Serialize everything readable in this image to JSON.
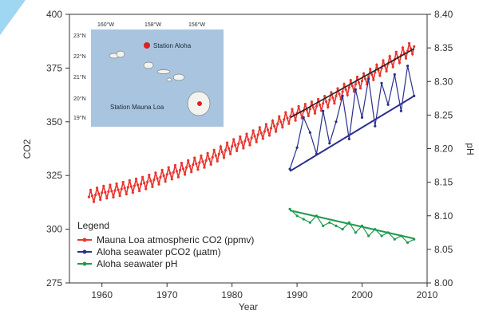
{
  "colors": {
    "atmospheric": "#e8352f",
    "seawater_pco2": "#2b2f8c",
    "seawater_ph": "#1f9a4e",
    "trend": "#222222",
    "map_sea": "#a9c4de",
    "map_land": "#f2f2ee",
    "station": "#e02020",
    "deco": "#9fd6f2"
  },
  "chart_data": {
    "type": "line",
    "xlabel": "Year",
    "ylabel": "CO2",
    "ylabel_right": "pH",
    "xlim": [
      1955,
      2010
    ],
    "ylim": [
      275,
      400
    ],
    "ylim_right": [
      8.0,
      8.4
    ],
    "x_ticks": [
      "1960",
      "1970",
      "1980",
      "1990",
      "2000",
      "2010"
    ],
    "y_ticks": [
      "275",
      "300",
      "325",
      "350",
      "375",
      "400"
    ],
    "y_ticks_right": [
      "8.00",
      "8.05",
      "8.10",
      "8.15",
      "8.20",
      "8.25",
      "8.30",
      "8.35",
      "8.40"
    ],
    "legend": {
      "title": "Legend",
      "entries": [
        "Mauna Loa atmospheric CO2 (ppmv)",
        "Aloha seawater pCO2 (µatm)",
        "Aloha seawater pH"
      ]
    },
    "series": [
      {
        "name": "Mauna Loa atmospheric CO2 (ppmv)",
        "axis": "left",
        "x": [
          1958,
          1960,
          1962,
          1964,
          1966,
          1968,
          1970,
          1972,
          1974,
          1976,
          1978,
          1980,
          1982,
          1984,
          1986,
          1988,
          1990,
          1992,
          1994,
          1996,
          1998,
          2000,
          2002,
          2004,
          2006,
          2008
        ],
        "y": [
          315,
          317,
          318,
          319.5,
          321,
          323,
          325.5,
          327.5,
          330,
          332,
          335,
          338.5,
          341,
          344,
          347,
          351,
          354,
          356,
          358.5,
          362,
          366,
          369,
          373,
          377,
          381,
          385
        ],
        "seasonal_amplitude": 3
      },
      {
        "name": "Aloha seawater pCO2 (µatm)",
        "axis": "left",
        "x": [
          1988.9,
          1990,
          1991,
          1992,
          1993,
          1994,
          1995,
          1996,
          1997,
          1998,
          1999,
          2000,
          2001,
          2002,
          2003,
          2004,
          2005,
          2006,
          2007,
          2008
        ],
        "y": [
          328,
          338,
          352,
          345,
          335,
          355,
          340,
          350,
          362,
          342,
          365,
          352,
          370,
          348,
          368,
          358,
          372,
          355,
          376,
          362
        ],
        "trend": [
          [
            1988.9,
            327
          ],
          [
            2008,
            362
          ]
        ]
      },
      {
        "name": "Aloha seawater pH",
        "axis": "right",
        "x": [
          1988.9,
          1990,
          1991,
          1992,
          1993,
          1994,
          1995,
          1996,
          1997,
          1998,
          1999,
          2000,
          2001,
          2002,
          2003,
          2004,
          2005,
          2006,
          2007,
          2008
        ],
        "y": [
          8.11,
          8.1,
          8.095,
          8.09,
          8.1,
          8.085,
          8.09,
          8.085,
          8.08,
          8.09,
          8.075,
          8.085,
          8.07,
          8.08,
          8.07,
          8.075,
          8.065,
          8.07,
          8.06,
          8.065
        ],
        "trend": [
          [
            1988.9,
            8.108
          ],
          [
            2008,
            8.066
          ]
        ]
      }
    ],
    "atmospheric_trend": [
      [
        1989,
        352
      ],
      [
        2008,
        384
      ]
    ]
  },
  "inset_map": {
    "lon_labels": [
      "160°W",
      "158°W",
      "156°W"
    ],
    "lat_labels": [
      "23°N",
      "22°N",
      "21°N",
      "20°N",
      "19°N"
    ],
    "station_aloha": "Station Aloha",
    "station_mauna_loa": "Station Mauna Loa"
  }
}
